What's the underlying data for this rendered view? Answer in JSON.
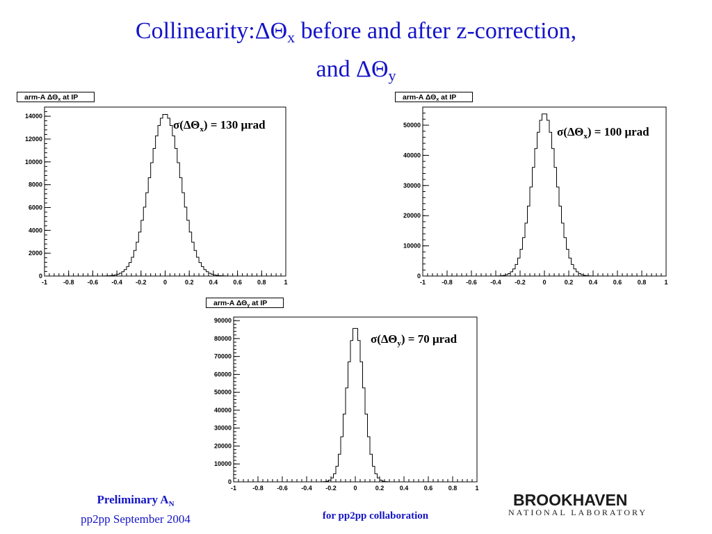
{
  "title": {
    "line1_prefix": "Collinearity:ΔΘ",
    "line1_sub": "x",
    "line1_suffix": " before and after z-correction,",
    "line2_prefix": "and ΔΘ",
    "line2_sub": "y"
  },
  "footer": {
    "preliminary_prefix": "Preliminary A",
    "preliminary_sub": "N",
    "conference": "pp2pp September 2004",
    "collaboration": "for  pp2pp collaboration",
    "logo_main": "BROOKHAVEN",
    "logo_sub": "NATIONAL LABORATORY"
  },
  "colors": {
    "title": "#1414c8",
    "axes": "#000000",
    "histogram": "#000000"
  },
  "chart_data": [
    {
      "type": "bar",
      "histogram": true,
      "title_prefix": "arm-A ΔΘ",
      "title_sub": "x",
      "title_suffix": " at IP",
      "annotation_prefix": "σ(ΔΘ",
      "annotation_sub": "x",
      "annotation_suffix": ") = 130 μrad",
      "xlim": [
        -1,
        1
      ],
      "ylim": [
        0,
        14800
      ],
      "xticks": [
        -1,
        -0.8,
        -0.6,
        -0.4,
        -0.2,
        0,
        0.2,
        0.4,
        0.6,
        0.8,
        1
      ],
      "xtick_labels": [
        "-1",
        "-0.8",
        "-0.6",
        "-0.4",
        "-0.2",
        "0",
        "0.2",
        "0.4",
        "0.6",
        "0.8",
        "1"
      ],
      "yticks": [
        0,
        2000,
        4000,
        6000,
        8000,
        10000,
        12000,
        14000
      ],
      "ytick_labels": [
        "0",
        "2000",
        "4000",
        "6000",
        "8000",
        "10000",
        "12000",
        "14000"
      ],
      "grid": false,
      "distribution": "gaussian",
      "mean": 0.0,
      "sigma": 0.13,
      "peak": 14200,
      "bin_width": 0.02
    },
    {
      "type": "bar",
      "histogram": true,
      "title_prefix": "arm-A ΔΘ",
      "title_sub": "x",
      "title_suffix": " at IP",
      "annotation_prefix": "σ(ΔΘ",
      "annotation_sub": "x",
      "annotation_suffix": ") = 100 μrad",
      "xlim": [
        -1,
        1
      ],
      "ylim": [
        0,
        56000
      ],
      "xticks": [
        -1,
        -0.8,
        -0.6,
        -0.4,
        -0.2,
        0,
        0.2,
        0.4,
        0.6,
        0.8,
        1
      ],
      "xtick_labels": [
        "-1",
        "-0.8",
        "-0.6",
        "-0.4",
        "-0.2",
        "0",
        "0.2",
        "0.4",
        "0.6",
        "0.8",
        "1"
      ],
      "yticks": [
        0,
        10000,
        20000,
        30000,
        40000,
        50000
      ],
      "ytick_labels": [
        "0",
        "10000",
        "20000",
        "30000",
        "40000",
        "50000"
      ],
      "grid": false,
      "distribution": "gaussian",
      "mean": 0.0,
      "sigma": 0.1,
      "peak": 54000,
      "bin_width": 0.02
    },
    {
      "type": "bar",
      "histogram": true,
      "title_prefix": "arm-A ΔΘ",
      "title_sub": "y",
      "title_suffix": " at IP",
      "annotation_prefix": "σ(ΔΘ",
      "annotation_sub": "y",
      "annotation_suffix": ") = 70 μrad",
      "xlim": [
        -1,
        1
      ],
      "ylim": [
        0,
        92000
      ],
      "xticks": [
        -1,
        -0.8,
        -0.6,
        -0.4,
        -0.2,
        0,
        0.2,
        0.4,
        0.6,
        0.8,
        1
      ],
      "xtick_labels": [
        "-1",
        "-0.8",
        "-0.6",
        "-0.4",
        "-0.2",
        "0",
        "0.2",
        "0.4",
        "0.6",
        "0.8",
        "1"
      ],
      "yticks": [
        0,
        10000,
        20000,
        30000,
        40000,
        50000,
        60000,
        70000,
        80000,
        90000
      ],
      "ytick_labels": [
        "0",
        "10000",
        "20000",
        "30000",
        "40000",
        "50000",
        "60000",
        "70000",
        "80000",
        "90000"
      ],
      "grid": false,
      "distribution": "gaussian",
      "mean": 0.0,
      "sigma": 0.07,
      "peak": 86500,
      "bin_width": 0.02
    }
  ]
}
